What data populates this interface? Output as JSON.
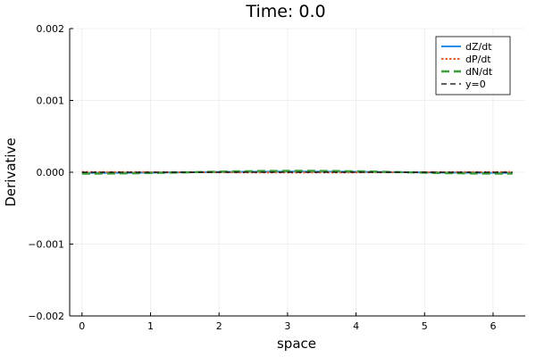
{
  "chart_data": {
    "type": "line",
    "title": "Time: 0.0",
    "xlabel": "space",
    "ylabel": "Derivative",
    "xlim": [
      -0.18,
      6.47
    ],
    "ylim": [
      -0.002,
      0.002
    ],
    "xticks": [
      0,
      1,
      2,
      3,
      4,
      5,
      6
    ],
    "xtick_labels": [
      "0",
      "1",
      "2",
      "3",
      "4",
      "5",
      "6"
    ],
    "yticks": [
      -0.002,
      -0.001,
      0.0,
      0.001,
      0.002
    ],
    "ytick_labels": [
      "−0.002",
      "−0.001",
      "0.000",
      "0.001",
      "0.002"
    ],
    "grid": true,
    "legend_position": "top-right",
    "x": [
      0,
      0.5236,
      1.0472,
      1.5708,
      2.0944,
      2.618,
      3.1416,
      3.6652,
      4.1888,
      4.7124,
      5.236,
      5.7596,
      6.2832
    ],
    "series": [
      {
        "name": "dZ/dt",
        "color": "#1f8ee8",
        "dash": "solid",
        "values": [
          -1e-05,
          -8e-06,
          -4e-06,
          0.0,
          4e-06,
          8e-06,
          1e-05,
          8e-06,
          4e-06,
          0.0,
          -4e-06,
          -8e-06,
          -1e-05
        ]
      },
      {
        "name": "dP/dt",
        "color": "#e65d2c",
        "dash": "dotted",
        "values": [
          4e-06,
          3.5e-06,
          2e-06,
          0.0,
          -2e-06,
          -3.5e-06,
          -4e-06,
          -3.5e-06,
          -2e-06,
          0.0,
          2e-06,
          3.5e-06,
          4e-06
        ]
      },
      {
        "name": "dN/dt",
        "color": "#3b9e3b",
        "dash": "dashed",
        "values": [
          -2e-05,
          -1.7e-05,
          -1e-05,
          0.0,
          1e-05,
          1.7e-05,
          2e-05,
          1.7e-05,
          1e-05,
          0.0,
          -1e-05,
          -1.7e-05,
          -2e-05
        ]
      },
      {
        "name": "y=0",
        "color": "#000000",
        "dash": "dashed",
        "values": [
          0,
          0,
          0,
          0,
          0,
          0,
          0,
          0,
          0,
          0,
          0,
          0,
          0
        ]
      }
    ]
  }
}
